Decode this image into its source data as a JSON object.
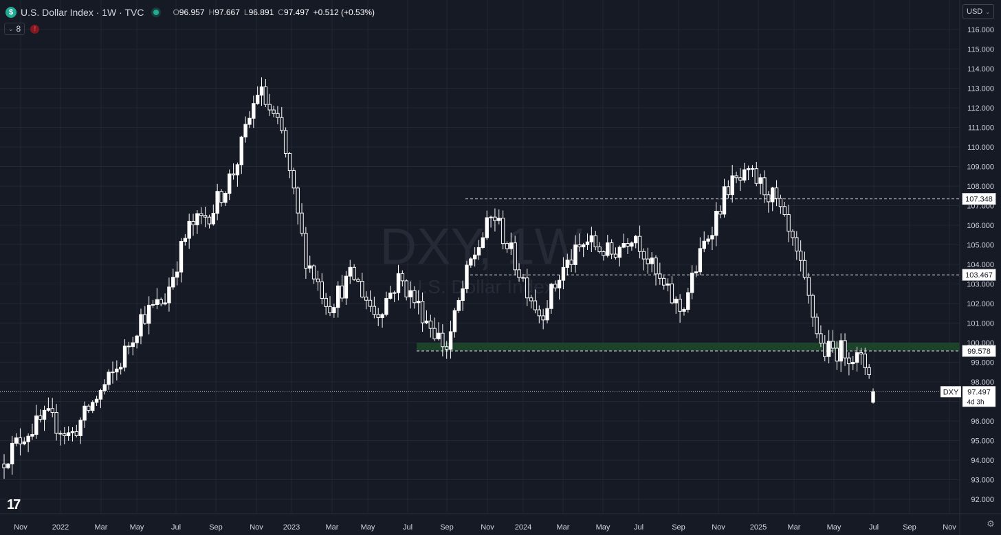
{
  "header": {
    "symbol_icon": "$",
    "title": "U.S. Dollar Index · 1W · TVC",
    "open_key": "O",
    "open": "96.957",
    "high_key": "H",
    "high": "97.667",
    "low_key": "L",
    "low": "96.891",
    "close_key": "C",
    "close": "97.497",
    "change": "+0.512 (+0.53%)"
  },
  "indicators": {
    "count_label": "8",
    "warning_icon": "!"
  },
  "currency": {
    "label": "USD"
  },
  "watermark": {
    "symbol": "DXY, 1W",
    "description": "U.S. Dollar Index"
  },
  "colors": {
    "background": "#161a25",
    "grid": "#232734",
    "candle": "#ffffff",
    "zone": "#1f4a2b"
  },
  "chart_data": {
    "type": "candlestick",
    "symbol": "DXY",
    "timeframe": "1W",
    "y_range": [
      91.5,
      116.5
    ],
    "y_ticks": [
      92,
      93,
      94,
      95,
      96,
      97,
      98,
      99,
      100,
      101,
      102,
      103,
      104,
      105,
      106,
      107,
      108,
      109,
      110,
      111,
      112,
      113,
      114,
      115,
      116
    ],
    "y_tick_labels": [
      "92.000",
      "93.000",
      "94.000",
      "95.000",
      "96.000",
      "97.000",
      "98.000",
      "99.000",
      "100.000",
      "101.000",
      "102.000",
      "103.000",
      "104.000",
      "105.000",
      "106.000",
      "107.000",
      "108.000",
      "109.000",
      "110.000",
      "111.000",
      "112.000",
      "113.000",
      "114.000",
      "115.000",
      "116.000"
    ],
    "x_tick_labels": [
      "Nov",
      "2022",
      "Mar",
      "May",
      "Jul",
      "Sep",
      "Nov",
      "2023",
      "Mar",
      "May",
      "Jul",
      "Sep",
      "Nov",
      "2024",
      "Mar",
      "May",
      "Jul",
      "Sep",
      "Nov",
      "2025",
      "Mar",
      "May",
      "Jul",
      "Sep",
      "Nov"
    ],
    "anchors": [
      [
        93.8,
        94.8
      ],
      [
        95.3,
        95.9
      ],
      [
        96.2,
        96.7
      ],
      [
        95.2,
        96.1
      ],
      [
        97.0,
        98.9
      ],
      [
        98.7,
        97.9
      ],
      [
        101.3,
        104.3
      ],
      [
        102.2,
        104.0
      ],
      [
        105.8,
        105.2
      ],
      [
        106.7,
        107.1
      ],
      [
        108.9,
        109.2
      ],
      [
        113.0,
        111.8
      ],
      [
        110.6,
        105.5
      ],
      [
        104.4,
        103.8
      ],
      [
        101.9,
        104.6
      ],
      [
        103.5,
        102.7
      ],
      [
        101.4,
        101.9
      ],
      [
        103.3,
        102.3
      ],
      [
        101.5,
        102.0
      ],
      [
        99.7,
        100.8
      ],
      [
        104.0,
        105.1
      ],
      [
        106.6,
        106.6
      ],
      [
        103.9,
        104.1
      ],
      [
        101.4,
        102.0
      ],
      [
        103.8,
        104.1
      ],
      [
        105.2,
        105.5
      ],
      [
        104.5,
        104.8
      ],
      [
        105.7,
        105.7
      ],
      [
        103.2,
        101.4
      ],
      [
        101.6,
        102.7
      ],
      [
        105.1,
        106.9
      ],
      [
        108.0,
        109.0
      ],
      [
        108.5,
        107.6
      ],
      [
        107.3,
        103.9
      ],
      [
        104.1,
        100.0
      ],
      [
        99.6,
        100.4
      ],
      [
        99.6,
        98.7
      ],
      [
        98.7,
        97.5
      ]
    ],
    "last_price": {
      "symbol": "DXY",
      "value": "97.497",
      "countdown": "4d 3h"
    },
    "levels": [
      {
        "value": 107.348,
        "label": "107.348"
      },
      {
        "value": 103.467,
        "label": "103.467"
      },
      {
        "value": 99.578,
        "label": "99.578"
      }
    ],
    "zone": {
      "low": 99.6,
      "high": 100.0
    },
    "grid": true
  }
}
